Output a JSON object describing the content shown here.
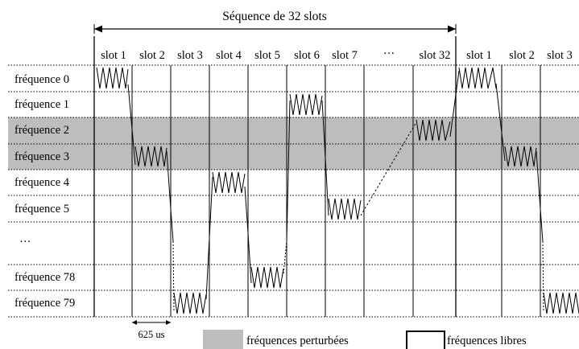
{
  "title": "Séquence de 32 slots",
  "slot_labels": [
    "slot 1",
    "slot 2",
    "slot 3",
    "slot 4",
    "slot 5",
    "slot 6",
    "slot 7",
    "···",
    "slot 32",
    "slot 1",
    "slot 2",
    "slot 3"
  ],
  "frequency_labels": [
    "fréquence 0",
    "fréquence 1",
    "fréquence 2",
    "fréquence 3",
    "fréquence 4",
    "fréquence 5",
    "···",
    "fréquence 78",
    "fréquence 79"
  ],
  "perturbed_frequencies": [
    "fréquence 2",
    "fréquence 3"
  ],
  "hop_sequence": [
    {
      "slot": "slot 1",
      "frequency": "fréquence 0"
    },
    {
      "slot": "slot 2",
      "frequency": "fréquence 3"
    },
    {
      "slot": "slot 3",
      "frequency": "fréquence 79"
    },
    {
      "slot": "slot 4",
      "frequency": "fréquence 4"
    },
    {
      "slot": "slot 5",
      "frequency": "fréquence 78"
    },
    {
      "slot": "slot 6",
      "frequency": "fréquence 1"
    },
    {
      "slot": "slot 7",
      "frequency": "fréquence 5"
    },
    {
      "slot": "slot 32",
      "frequency": "fréquence 2"
    },
    {
      "slot": "slot 1",
      "frequency": "fréquence 0"
    },
    {
      "slot": "slot 2",
      "frequency": "fréquence 3"
    },
    {
      "slot": "slot 3",
      "frequency": "fréquence 79"
    }
  ],
  "duration_label": "625 us",
  "legend": {
    "perturbed": "fréquences perturbées",
    "free": "fréquences libres"
  },
  "colors": {
    "perturbed_band": "#bdbdbd",
    "line": "#000000"
  }
}
